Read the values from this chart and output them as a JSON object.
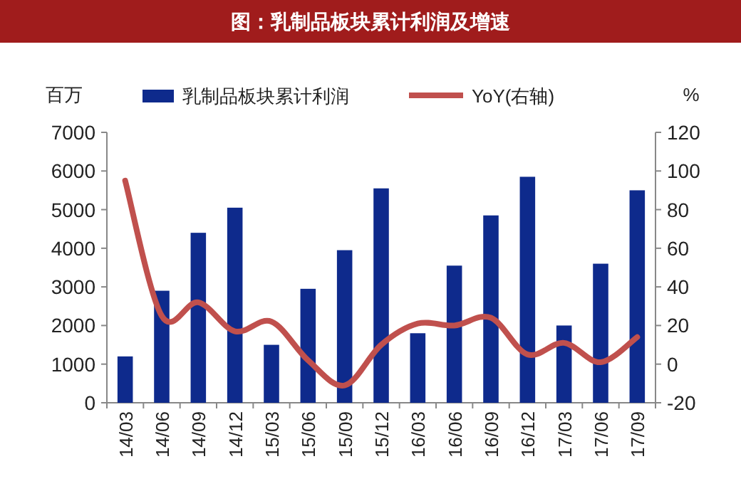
{
  "chart_data": {
    "type": "bar",
    "title": "图：乳制品板块累计利润及增速",
    "ylabel": "百万",
    "y2label": "%",
    "legend": "top",
    "grid": false,
    "categories": [
      "14/03",
      "14/06",
      "14/09",
      "14/12",
      "15/03",
      "15/06",
      "15/09",
      "15/12",
      "16/03",
      "16/06",
      "16/09",
      "16/12",
      "17/03",
      "17/06",
      "17/09"
    ],
    "series": [
      {
        "name": "乳制品板块累计利润",
        "color": "#0e2a8c",
        "values": [
          1200,
          2900,
          4400,
          5050,
          1500,
          2950,
          3950,
          5550,
          1800,
          3550,
          4850,
          5850,
          2000,
          3600,
          5500
        ]
      },
      {
        "name": "YoY(右轴)",
        "type": "line",
        "axis": "y2",
        "color": "#c0504d",
        "values": [
          95,
          25,
          32,
          17,
          22,
          2,
          -11,
          10,
          21,
          20,
          24,
          5,
          11,
          1,
          14
        ]
      }
    ],
    "ylim": [
      0,
      7000
    ],
    "yticks": [
      0,
      1000,
      2000,
      3000,
      4000,
      5000,
      6000,
      7000
    ],
    "y2lim": [
      -20,
      120
    ],
    "y2ticks": [
      -20,
      0,
      20,
      40,
      60,
      80,
      100,
      120
    ]
  }
}
